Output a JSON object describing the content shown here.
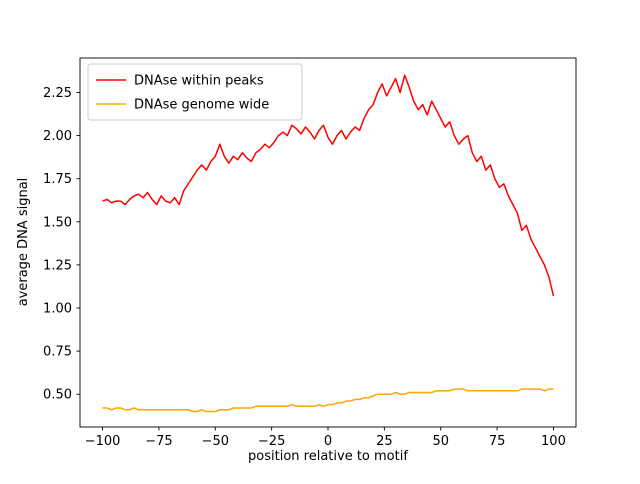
{
  "chart_data": {
    "type": "line",
    "title": "",
    "xlabel": "position relative to motif",
    "ylabel": "average DNA signal",
    "xlim": [
      -110,
      110
    ],
    "ylim": [
      0.31,
      2.45
    ],
    "xticks": [
      -100,
      -75,
      -50,
      -25,
      0,
      25,
      50,
      75,
      100
    ],
    "yticks": [
      0.5,
      0.75,
      1.0,
      1.25,
      1.5,
      1.75,
      2.0,
      2.25
    ],
    "grid": false,
    "legend_position": "upper-left",
    "x": [
      -100,
      -98,
      -96,
      -94,
      -92,
      -90,
      -88,
      -86,
      -84,
      -82,
      -80,
      -78,
      -76,
      -74,
      -72,
      -70,
      -68,
      -66,
      -64,
      -62,
      -60,
      -58,
      -56,
      -54,
      -52,
      -50,
      -48,
      -46,
      -44,
      -42,
      -40,
      -38,
      -36,
      -34,
      -32,
      -30,
      -28,
      -26,
      -24,
      -22,
      -20,
      -18,
      -16,
      -14,
      -12,
      -10,
      -8,
      -6,
      -4,
      -2,
      0,
      2,
      4,
      6,
      8,
      10,
      12,
      14,
      16,
      18,
      20,
      22,
      24,
      26,
      28,
      30,
      32,
      34,
      36,
      38,
      40,
      42,
      44,
      46,
      48,
      50,
      52,
      54,
      56,
      58,
      60,
      62,
      64,
      66,
      68,
      70,
      72,
      74,
      76,
      78,
      80,
      82,
      84,
      86,
      88,
      90,
      92,
      94,
      96,
      98,
      100
    ],
    "series": [
      {
        "name": "DNAse within peaks",
        "color": "#ff0000",
        "values": [
          1.62,
          1.63,
          1.61,
          1.62,
          1.62,
          1.6,
          1.63,
          1.65,
          1.66,
          1.64,
          1.67,
          1.63,
          1.6,
          1.65,
          1.62,
          1.61,
          1.64,
          1.6,
          1.68,
          1.72,
          1.76,
          1.8,
          1.83,
          1.8,
          1.85,
          1.88,
          1.95,
          1.88,
          1.84,
          1.88,
          1.86,
          1.9,
          1.87,
          1.85,
          1.9,
          1.92,
          1.95,
          1.93,
          1.96,
          2.0,
          2.02,
          2.0,
          2.06,
          2.04,
          2.01,
          2.05,
          2.02,
          1.98,
          2.03,
          2.06,
          1.99,
          1.95,
          2.0,
          2.03,
          1.98,
          2.02,
          2.05,
          2.03,
          2.1,
          2.15,
          2.18,
          2.25,
          2.3,
          2.23,
          2.28,
          2.33,
          2.25,
          2.35,
          2.28,
          2.2,
          2.15,
          2.18,
          2.12,
          2.2,
          2.15,
          2.1,
          2.05,
          2.08,
          2.0,
          1.95,
          1.98,
          2.0,
          1.9,
          1.85,
          1.88,
          1.8,
          1.83,
          1.75,
          1.7,
          1.72,
          1.65,
          1.6,
          1.55,
          1.45,
          1.48,
          1.4,
          1.35,
          1.3,
          1.25,
          1.18,
          1.07
        ]
      },
      {
        "name": "DNAse genome wide",
        "color": "#ffa500",
        "values": [
          0.42,
          0.42,
          0.41,
          0.42,
          0.42,
          0.41,
          0.41,
          0.42,
          0.41,
          0.41,
          0.41,
          0.41,
          0.41,
          0.41,
          0.41,
          0.41,
          0.41,
          0.41,
          0.41,
          0.41,
          0.4,
          0.4,
          0.41,
          0.4,
          0.4,
          0.4,
          0.41,
          0.41,
          0.41,
          0.42,
          0.42,
          0.42,
          0.42,
          0.42,
          0.43,
          0.43,
          0.43,
          0.43,
          0.43,
          0.43,
          0.43,
          0.43,
          0.44,
          0.43,
          0.43,
          0.43,
          0.43,
          0.43,
          0.44,
          0.43,
          0.44,
          0.44,
          0.45,
          0.45,
          0.46,
          0.46,
          0.47,
          0.47,
          0.48,
          0.48,
          0.49,
          0.5,
          0.5,
          0.5,
          0.5,
          0.51,
          0.5,
          0.5,
          0.51,
          0.51,
          0.51,
          0.51,
          0.51,
          0.51,
          0.52,
          0.52,
          0.52,
          0.52,
          0.53,
          0.53,
          0.53,
          0.52,
          0.52,
          0.52,
          0.52,
          0.52,
          0.52,
          0.52,
          0.52,
          0.52,
          0.52,
          0.52,
          0.52,
          0.53,
          0.53,
          0.53,
          0.53,
          0.53,
          0.52,
          0.53,
          0.53
        ]
      }
    ]
  }
}
